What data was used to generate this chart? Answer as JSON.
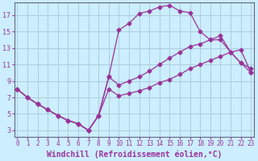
{
  "background_color": "#cceeff",
  "grid_color": "#aaccdd",
  "line_color": "#993399",
  "xlabel": "Windchill (Refroidissement éolien,°C)",
  "xlabel_fontsize": 7.0,
  "xtick_fontsize": 5.5,
  "ytick_fontsize": 6.0,
  "xticks": [
    0,
    1,
    2,
    3,
    4,
    5,
    6,
    7,
    8,
    9,
    10,
    11,
    12,
    13,
    14,
    15,
    16,
    17,
    18,
    19,
    20,
    21,
    22,
    23
  ],
  "yticks": [
    3,
    5,
    7,
    9,
    11,
    13,
    15,
    17
  ],
  "xlim": [
    -0.3,
    23.3
  ],
  "ylim": [
    2.2,
    18.5
  ],
  "curve_upper_x": [
    0,
    1,
    2,
    3,
    4,
    5,
    6,
    7,
    8,
    9,
    10,
    11,
    12,
    13,
    14,
    15,
    16,
    17,
    18,
    19,
    20,
    21,
    22,
    23
  ],
  "curve_upper_y": [
    8.0,
    7.0,
    6.2,
    5.5,
    4.8,
    4.2,
    3.8,
    3.0,
    4.8,
    9.5,
    15.2,
    16.0,
    17.2,
    17.5,
    18.0,
    18.2,
    17.5,
    17.3,
    15.0,
    14.0,
    14.0,
    12.5,
    11.2,
    10.5
  ],
  "curve_mid_x": [
    0,
    1,
    2,
    3,
    4,
    5,
    6,
    7,
    8,
    9,
    10,
    11,
    12,
    13,
    14,
    15,
    16,
    17,
    18,
    19,
    20,
    21,
    22,
    23
  ],
  "curve_mid_y": [
    8.0,
    7.0,
    6.2,
    5.5,
    4.8,
    4.2,
    3.8,
    3.0,
    4.8,
    9.5,
    8.5,
    9.0,
    9.5,
    10.2,
    11.0,
    11.8,
    12.5,
    13.2,
    13.5,
    14.0,
    14.5,
    12.5,
    11.2,
    10.0
  ],
  "curve_lower_x": [
    0,
    1,
    2,
    3,
    4,
    5,
    6,
    7,
    8,
    9,
    10,
    11,
    12,
    13,
    14,
    15,
    16,
    17,
    18,
    19,
    20,
    21,
    22,
    23
  ],
  "curve_lower_y": [
    8.0,
    7.0,
    6.2,
    5.5,
    4.8,
    4.2,
    3.8,
    3.0,
    4.8,
    8.0,
    7.2,
    7.5,
    7.8,
    8.2,
    8.8,
    9.2,
    9.8,
    10.5,
    11.0,
    11.5,
    12.0,
    12.5,
    12.8,
    10.0
  ]
}
